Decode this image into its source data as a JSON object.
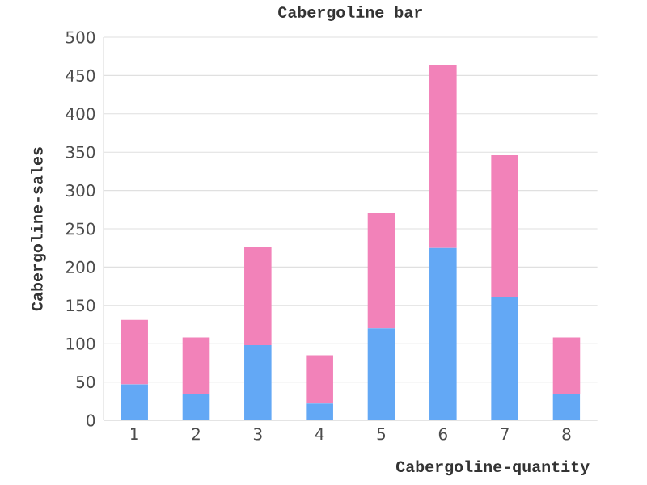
{
  "chart_data": {
    "type": "bar",
    "title": "Cabergoline bar",
    "xlabel": "Cabergoline-quantity",
    "ylabel": "Cabergoline-sales",
    "categories": [
      "1",
      "2",
      "3",
      "4",
      "5",
      "6",
      "7",
      "8"
    ],
    "stacked": true,
    "series": [
      {
        "color": "#63a8f5",
        "values": [
          47,
          34,
          98,
          22,
          120,
          225,
          161,
          34
        ]
      },
      {
        "color": "#f282b9",
        "values": [
          84,
          74,
          128,
          63,
          150,
          238,
          185,
          74
        ]
      }
    ],
    "ylim": [
      0,
      500
    ],
    "yticks": [
      0,
      50,
      100,
      150,
      200,
      250,
      300,
      350,
      400,
      450,
      500
    ],
    "grid": "y"
  }
}
